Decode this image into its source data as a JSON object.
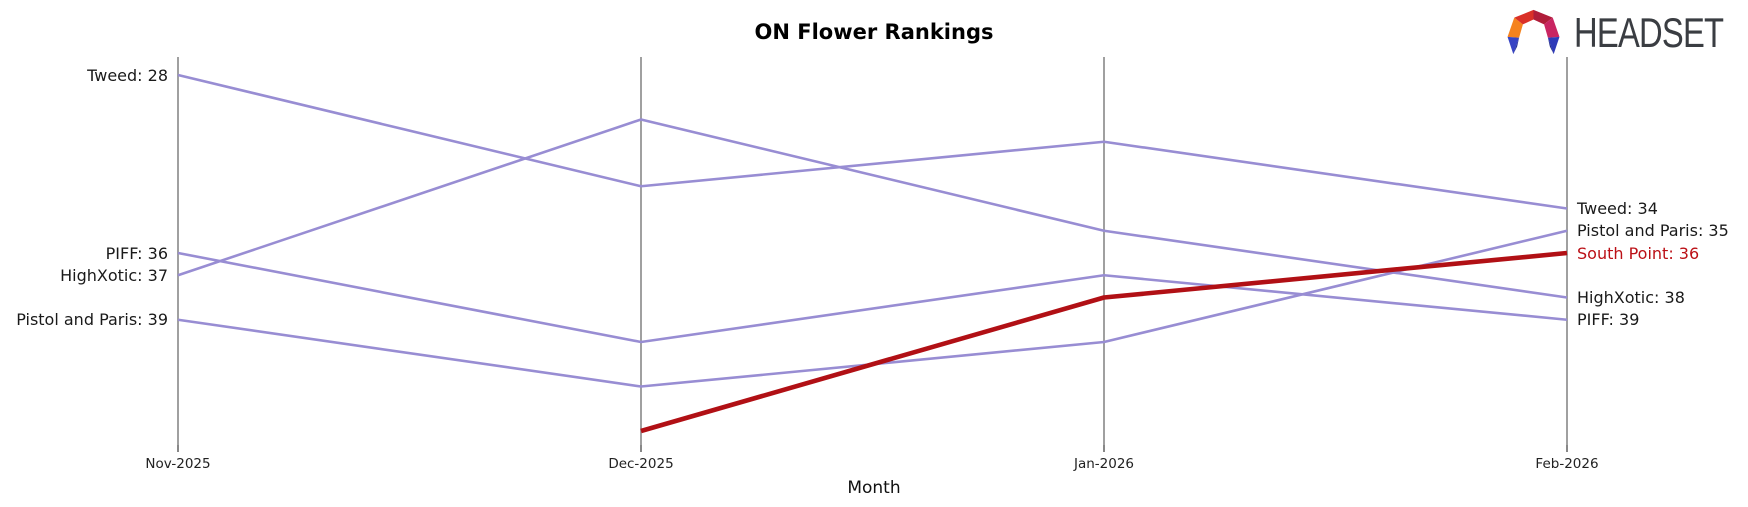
{
  "header": {
    "logo_text": "HEADSET",
    "logo_icon": "headset-faceted-arc-icon",
    "logo_text_color": "#3a3d42",
    "logo_palette": [
      "#f5831f",
      "#da3028",
      "#b01d3a",
      "#c92562",
      "#3744c4",
      "#222c8f"
    ]
  },
  "chart_data": {
    "type": "line",
    "subtype": "bump-ranking-chart",
    "title": "ON Flower Rankings",
    "xlabel": "Month",
    "ylabel": "",
    "x_categories": [
      "Nov-2025",
      "Dec-2025",
      "Jan-2026",
      "Feb-2026"
    ],
    "y_meaning": "rank (lower number = higher position, axis inverted)",
    "y_inverted": true,
    "grid": false,
    "legend": "none (series labeled at line endpoints)",
    "axis_color": "#a0a0a0",
    "tick_color": "#555555",
    "series": [
      {
        "name": "Tweed",
        "values": [
          28,
          33,
          31,
          34
        ],
        "color": "#988dd3",
        "highlight": false
      },
      {
        "name": "PIFF",
        "values": [
          36,
          40,
          37,
          39
        ],
        "color": "#988dd3",
        "highlight": false
      },
      {
        "name": "HighXotic",
        "values": [
          37,
          30,
          35,
          38
        ],
        "color": "#988dd3",
        "highlight": false
      },
      {
        "name": "Pistol and Paris",
        "values": [
          39,
          42,
          40,
          35
        ],
        "color": "#988dd3",
        "highlight": false
      },
      {
        "name": "South Point",
        "values": [
          null,
          44,
          38,
          36
        ],
        "color": "#b11015",
        "highlight": true
      }
    ],
    "left_labels": [
      {
        "text": "Tweed: 28",
        "rank": 28,
        "color": "#1a1a1a"
      },
      {
        "text": "PIFF: 36",
        "rank": 36,
        "color": "#1a1a1a"
      },
      {
        "text": "HighXotic: 37",
        "rank": 37,
        "color": "#1a1a1a"
      },
      {
        "text": "Pistol and Paris: 39",
        "rank": 39,
        "color": "#1a1a1a"
      }
    ],
    "right_labels": [
      {
        "text": "Tweed: 34",
        "rank": 34,
        "color": "#1a1a1a"
      },
      {
        "text": "Pistol and Paris: 35",
        "rank": 35,
        "color": "#1a1a1a"
      },
      {
        "text": "South Point: 36",
        "rank": 36,
        "color": "#bb1016"
      },
      {
        "text": "HighXotic: 38",
        "rank": 38,
        "color": "#1a1a1a"
      },
      {
        "text": "PIFF: 39",
        "rank": 39,
        "color": "#1a1a1a"
      }
    ]
  }
}
